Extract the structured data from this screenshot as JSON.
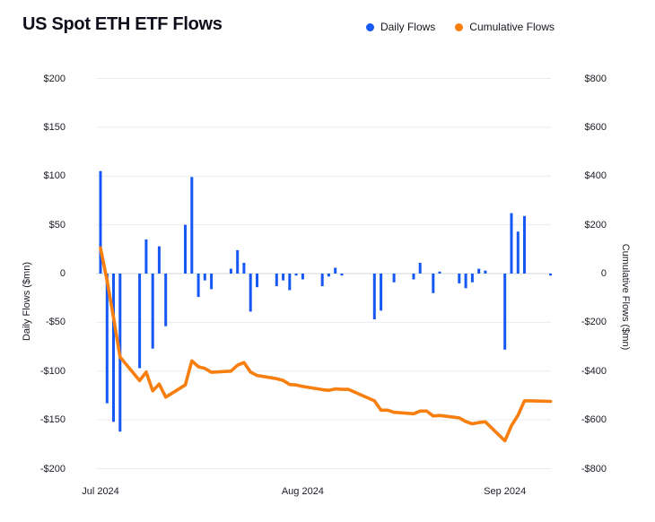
{
  "title": "US Spot ETH ETF Flows",
  "colors": {
    "daily_bar": "#1658f3",
    "cumulative_line": "#f87e0e",
    "grid_line": "#e9ebef",
    "zero_line": "#d2dad5",
    "text": "#1b1c24",
    "title_text": "#0e0f1a",
    "background": "#ffffff"
  },
  "chart_data": {
    "type": "bar+line",
    "title": "US Spot ETH ETF Flows",
    "grid": true,
    "legend_position": "top-right",
    "dates": [
      "2024-07-23",
      "2024-07-24",
      "2024-07-25",
      "2024-07-26",
      "2024-07-29",
      "2024-07-30",
      "2024-07-31",
      "2024-08-01",
      "2024-08-02",
      "2024-08-05",
      "2024-08-06",
      "2024-08-07",
      "2024-08-08",
      "2024-08-09",
      "2024-08-12",
      "2024-08-13",
      "2024-08-14",
      "2024-08-15",
      "2024-08-16",
      "2024-08-19",
      "2024-08-20",
      "2024-08-21",
      "2024-08-22",
      "2024-08-23",
      "2024-08-26",
      "2024-08-27",
      "2024-08-28",
      "2024-08-29",
      "2024-08-30",
      "2024-09-03",
      "2024-09-04",
      "2024-09-05",
      "2024-09-06",
      "2024-09-09",
      "2024-09-10",
      "2024-09-11",
      "2024-09-12",
      "2024-09-13",
      "2024-09-16",
      "2024-09-17",
      "2024-09-18",
      "2024-09-19",
      "2024-09-20",
      "2024-09-23",
      "2024-09-24",
      "2024-09-25",
      "2024-09-26",
      "2024-09-27",
      "2024-09-30"
    ],
    "day_offsets": [
      0,
      1,
      2,
      3,
      6,
      7,
      8,
      9,
      10,
      13,
      14,
      15,
      16,
      17,
      20,
      21,
      22,
      23,
      24,
      27,
      28,
      29,
      30,
      31,
      34,
      35,
      36,
      37,
      38,
      42,
      43,
      44,
      45,
      48,
      49,
      50,
      51,
      52,
      55,
      56,
      57,
      58,
      59,
      62,
      63,
      64,
      65,
      66,
      69
    ],
    "series": [
      {
        "name": "Daily Flows",
        "type": "bar",
        "axis": "left",
        "color": "#1658f3",
        "values": [
          105,
          -133,
          -152,
          -162,
          -97,
          35,
          -77,
          28,
          -54,
          50,
          99,
          -24,
          -7,
          -16,
          5,
          24,
          11,
          -39,
          -14,
          -13,
          -7,
          -17,
          -2,
          -6,
          -13,
          -3,
          6,
          -2,
          0,
          -47,
          -38,
          0,
          -9,
          -6,
          11,
          0,
          -20,
          2,
          -10,
          -15,
          -9,
          5,
          3,
          -78,
          62,
          43,
          59,
          0,
          -2
        ]
      },
      {
        "name": "Cumulative Flows",
        "type": "line",
        "axis": "right",
        "color": "#f87e0e",
        "values": [
          105,
          -28,
          -180,
          -342,
          -439,
          -404,
          -481,
          -453,
          -507,
          -457,
          -358,
          -382,
          -389,
          -405,
          -400,
          -376,
          -365,
          -404,
          -418,
          -431,
          -438,
          -455,
          -457,
          -463,
          -476,
          -479,
          -473,
          -475,
          -475,
          -522,
          -560,
          -560,
          -569,
          -575,
          -564,
          -564,
          -584,
          -582,
          -592,
          -607,
          -616,
          -611,
          -608,
          -686,
          -624,
          -581,
          -522,
          -522,
          -524
        ]
      }
    ],
    "left_axis": {
      "label": "Daily Flows ($mn)",
      "range": [
        -200,
        200
      ],
      "tick_values": [
        200,
        150,
        100,
        50,
        0,
        -50,
        -100,
        -150,
        -200
      ],
      "ticks": [
        "$200",
        "$150",
        "$100",
        "$50",
        "0",
        "-$50",
        "-$100",
        "-$150",
        "-$200"
      ]
    },
    "right_axis": {
      "label": "Cumulative Flows ($mn)",
      "range": [
        -800,
        800
      ],
      "tick_values": [
        800,
        600,
        400,
        200,
        0,
        -200,
        -400,
        -600,
        -800
      ],
      "ticks": [
        "$800",
        "$600",
        "$400",
        "$200",
        "0",
        "-$200",
        "-$400",
        "-$600",
        "-$800"
      ]
    },
    "x_axis": {
      "ticks": [
        {
          "label": "Jul 2024",
          "day": 0
        },
        {
          "label": "Aug 2024",
          "day": 31
        },
        {
          "label": "Sep 2024",
          "day": 62
        }
      ]
    }
  }
}
